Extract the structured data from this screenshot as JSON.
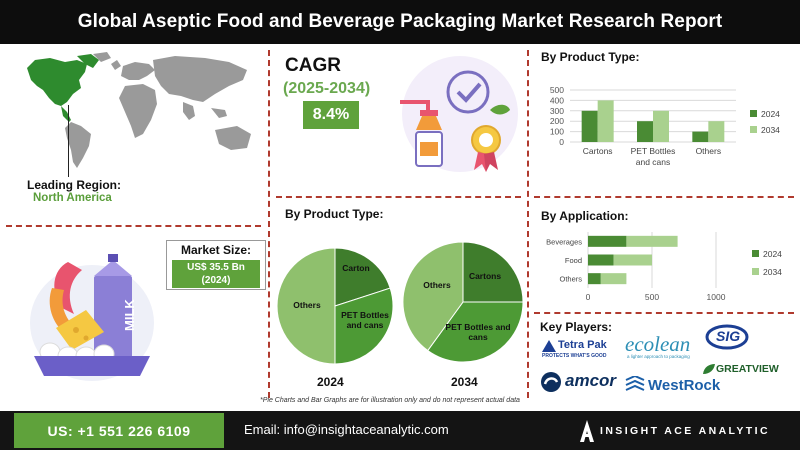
{
  "header": {
    "title": "Global Aseptic Food and Beverage Packaging Market Research Report"
  },
  "leading_region": {
    "label": "Leading Region:",
    "value": "North America"
  },
  "market_size": {
    "label": "Market Size:",
    "value_line1": "US$ 35.5 Bn",
    "value_line2": "(2024)"
  },
  "cagr": {
    "title": "CAGR",
    "period": "(2025-2034)",
    "value": "8.4%"
  },
  "sections": {
    "product_bar_title": "By Product Type:",
    "product_pie_title": "By Product Type:",
    "application_title": "By Application:",
    "players_title": "Key Players:"
  },
  "footnote": "*Pie Charts and Bar Graphs are for illustration only and do not represent actual data",
  "footer": {
    "phone": "US: +1 551 226 6109",
    "email": "Email: info@insightaceanalytic.com",
    "brand": "INSIGHT ACE ANALYTIC"
  },
  "players": {
    "tetrapak": "Tetra Pak",
    "tetrapak_tag": "PROTECTS WHAT'S GOOD",
    "ecolean": "ecolean",
    "ecolean_tag": "a lighter approach to packaging",
    "sig": "SIG",
    "greatview": "GREATVIEW",
    "amcor": "amcor",
    "westrock": "WestRock"
  },
  "illustration": {
    "carton_text": "MILK"
  },
  "colors": {
    "dark_green": "#4a8b34",
    "light_green": "#a9d18e",
    "accent_green": "#5fa23b",
    "divider": "#b03a2e"
  },
  "chart_data": [
    {
      "type": "bar",
      "title": "By Product Type:",
      "categories": [
        "Cartons",
        "PET Bottles and cans",
        "Others"
      ],
      "series": [
        {
          "name": "2024",
          "values": [
            300,
            200,
            100
          ]
        },
        {
          "name": "2034",
          "values": [
            400,
            300,
            200
          ]
        }
      ],
      "ylim": [
        0,
        500
      ],
      "yticks": [
        0,
        100,
        200,
        300,
        400,
        500
      ],
      "grid": true,
      "legend": "right"
    },
    {
      "type": "bar",
      "orientation": "horizontal",
      "title": "By Application:",
      "categories": [
        "Beverages",
        "Food",
        "Others"
      ],
      "series": [
        {
          "name": "2024",
          "values": [
            300,
            200,
            100
          ]
        },
        {
          "name": "2034",
          "values": [
            400,
            300,
            200
          ]
        }
      ],
      "xlim": [
        0,
        1000
      ],
      "xticks": [
        0,
        500,
        1000
      ],
      "grid": true,
      "legend": "right"
    },
    {
      "type": "pie",
      "year": "2024",
      "labels": [
        "Carton",
        "PET Bottles and cans",
        "Others"
      ],
      "values": [
        20,
        30,
        50
      ]
    },
    {
      "type": "pie",
      "year": "2034",
      "labels": [
        "Cartons",
        "PET Bottles and cans",
        "Others"
      ],
      "values": [
        25,
        35,
        40
      ]
    }
  ]
}
